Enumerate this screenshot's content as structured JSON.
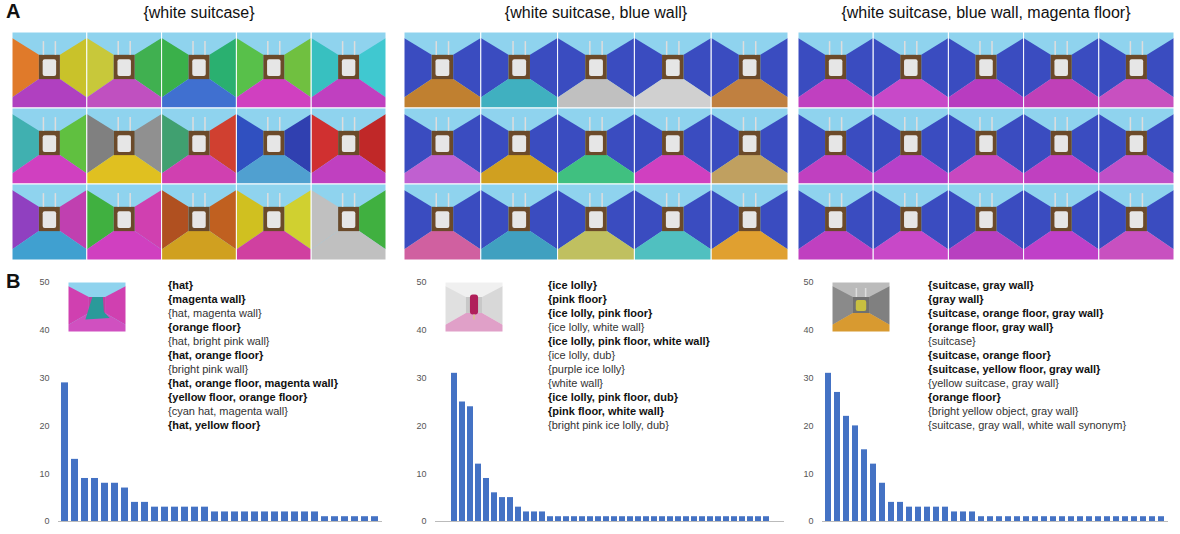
{
  "panel_A": {
    "letter": "A",
    "grids": [
      {
        "title": "{white suitcase}"
      },
      {
        "title": "{white suitcase, blue wall}"
      },
      {
        "title": "{white suitcase, blue wall, magenta floor}"
      }
    ]
  },
  "panel_B": {
    "letter": "B"
  },
  "chart_data": [
    {
      "type": "bar",
      "categories": [
        null,
        null,
        null,
        null,
        null,
        null,
        null,
        null,
        null,
        null,
        null,
        null,
        null,
        null,
        null,
        null,
        null,
        null,
        null,
        null,
        null,
        null,
        null,
        null,
        null,
        null,
        null,
        null,
        null,
        null,
        null,
        null
      ],
      "values": [
        29,
        13,
        9,
        9,
        8,
        8,
        7,
        4,
        4,
        3,
        3,
        3,
        3,
        3,
        3,
        2,
        2,
        2,
        2,
        2,
        2,
        2,
        2,
        2,
        2,
        2,
        1,
        1,
        1,
        1,
        1,
        1
      ],
      "color": "#4472c4",
      "ylim": [
        0,
        50
      ],
      "yticks": [
        0,
        10,
        20,
        30,
        40,
        50
      ],
      "tick_labels": "y",
      "annotations": [
        {
          "text": "{hat}",
          "bold": true
        },
        {
          "text": "{magenta wall}",
          "bold": true
        },
        {
          "text": "{hat, magenta wall}",
          "bold": false
        },
        {
          "text": "{orange floor}",
          "bold": true
        },
        {
          "text": "{hat, bright pink wall}",
          "bold": false
        },
        {
          "text": "{hat, orange floor}",
          "bold": true
        },
        {
          "text": "{bright pink wall}",
          "bold": false
        },
        {
          "text": "{hat, orange floor, magenta wall}",
          "bold": true
        },
        {
          "text": "{yellow floor, orange floor}",
          "bold": true
        },
        {
          "text": "{cyan hat, magenta wall}",
          "bold": false
        },
        {
          "text": "{hat, yellow floor}",
          "bold": true
        }
      ]
    },
    {
      "type": "bar",
      "categories": [
        null,
        null,
        null,
        null,
        null,
        null,
        null,
        null,
        null,
        null,
        null,
        null,
        null,
        null,
        null,
        null,
        null,
        null,
        null,
        null,
        null,
        null,
        null,
        null,
        null,
        null,
        null,
        null,
        null,
        null,
        null,
        null,
        null,
        null,
        null,
        null,
        null,
        null,
        null,
        null
      ],
      "values": [
        31,
        25,
        24,
        12,
        9,
        6,
        5,
        5,
        3,
        2,
        2,
        2,
        1,
        1,
        1,
        1,
        1,
        1,
        1,
        1,
        1,
        1,
        1,
        1,
        1,
        1,
        1,
        1,
        1,
        1,
        1,
        1,
        1,
        1,
        1,
        1,
        1,
        1,
        1,
        1
      ],
      "color": "#4472c4",
      "ylim": [
        0,
        50
      ],
      "yticks": [
        0,
        10,
        20,
        30,
        40,
        50
      ],
      "tick_labels": "y",
      "annotations": [
        {
          "text": "{ice lolly}",
          "bold": true
        },
        {
          "text": "{pink floor}",
          "bold": true
        },
        {
          "text": "{ice lolly, pink floor}",
          "bold": true
        },
        {
          "text": "{ice lolly, white wall}",
          "bold": false
        },
        {
          "text": "{ice lolly, pink floor, white wall}",
          "bold": true
        },
        {
          "text": "{ice lolly, dub}",
          "bold": false
        },
        {
          "text": "{purple ice lolly}",
          "bold": false
        },
        {
          "text": "{white wall}",
          "bold": false
        },
        {
          "text": "{ice lolly, pink floor, dub}",
          "bold": true
        },
        {
          "text": "{pink floor, white wall}",
          "bold": true
        },
        {
          "text": "{bright pink ice lolly, dub}",
          "bold": false
        }
      ]
    },
    {
      "type": "bar",
      "categories": [
        null,
        null,
        null,
        null,
        null,
        null,
        null,
        null,
        null,
        null,
        null,
        null,
        null,
        null,
        null,
        null,
        null,
        null,
        null,
        null,
        null,
        null,
        null,
        null,
        null,
        null,
        null,
        null,
        null,
        null,
        null,
        null,
        null,
        null,
        null,
        null,
        null,
        null
      ],
      "values": [
        31,
        27,
        22,
        20,
        15,
        12,
        8,
        4,
        4,
        3,
        3,
        3,
        3,
        3,
        2,
        2,
        2,
        1,
        1,
        1,
        1,
        1,
        1,
        1,
        1,
        1,
        1,
        1,
        1,
        1,
        1,
        1,
        1,
        1,
        1,
        1,
        1,
        1
      ],
      "color": "#4472c4",
      "ylim": [
        0,
        50
      ],
      "yticks": [
        0,
        10,
        20,
        30,
        40,
        50
      ],
      "tick_labels": "y",
      "annotations": [
        {
          "text": "{suitcase, gray wall}",
          "bold": true
        },
        {
          "text": "{gray wall}",
          "bold": true
        },
        {
          "text": "{suitcase, orange floor, gray wall}",
          "bold": true
        },
        {
          "text": "{orange floor, gray wall}",
          "bold": true
        },
        {
          "text": "{suitcase}",
          "bold": false
        },
        {
          "text": "{suitcase, orange floor}",
          "bold": true
        },
        {
          "text": "{suitcase, yellow floor, gray wall}",
          "bold": true
        },
        {
          "text": "{yellow suitcase, gray wall}",
          "bold": false
        },
        {
          "text": "{orange floor}",
          "bold": true
        },
        {
          "text": "{bright yellow object, gray wall}",
          "bold": false
        },
        {
          "text": "{suitcase, gray wall, white wall synonym}",
          "bold": false
        }
      ]
    }
  ]
}
